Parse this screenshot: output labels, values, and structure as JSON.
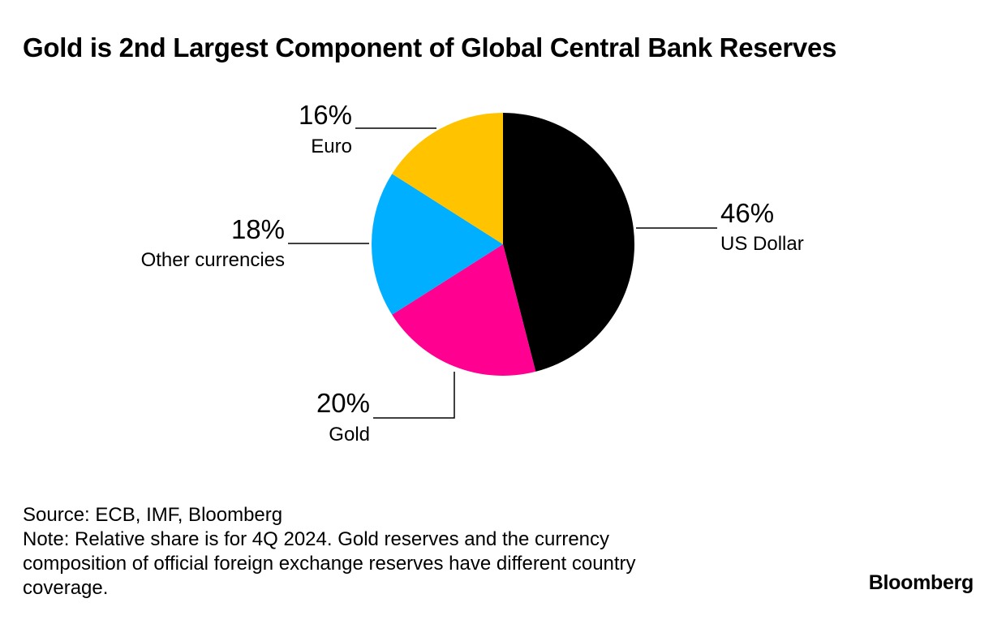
{
  "title": "Gold is 2nd Largest Component of Global Central Bank Reserves",
  "chart_data": {
    "type": "pie",
    "title": "Gold is 2nd Largest Component of Global Central Bank Reserves",
    "slices": [
      {
        "name": "US Dollar",
        "value": 46,
        "label": "46%",
        "color": "#000000"
      },
      {
        "name": "Gold",
        "value": 20,
        "label": "20%",
        "color": "#FF0090"
      },
      {
        "name": "Other currencies",
        "value": 18,
        "label": "18%",
        "color": "#00AFFF"
      },
      {
        "name": "Euro",
        "value": 16,
        "label": "16%",
        "color": "#FFC300"
      }
    ],
    "start": "12 o'clock",
    "direction": "clockwise"
  },
  "footer": {
    "source": "Source: ECB, IMF, Bloomberg",
    "note": "Note: Relative share is for 4Q 2024. Gold reserves and the currency composition of official foreign exchange reserves have different country coverage."
  },
  "brand": "Bloomberg"
}
